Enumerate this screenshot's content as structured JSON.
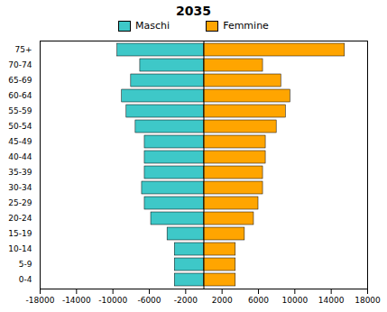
{
  "chart_data": {
    "type": "bar",
    "orientation": "horizontal",
    "title": "2035",
    "categories": [
      "0-4",
      "5-9",
      "10-14",
      "15-19",
      "20-24",
      "25-29",
      "30-34",
      "35-39",
      "40-44",
      "45-49",
      "50-54",
      "55-59",
      "60-64",
      "65-69",
      "70-74",
      "75+"
    ],
    "series": [
      {
        "name": "Maschi",
        "color": "#3EC8C8",
        "values": [
          -3200,
          -3200,
          -3200,
          -4000,
          -5800,
          -6500,
          -6800,
          -6500,
          -6500,
          -6500,
          -7500,
          -8500,
          -9000,
          -8000,
          -7000,
          -9500
        ]
      },
      {
        "name": "Femmine",
        "color": "#FFA500",
        "values": [
          3500,
          3500,
          3500,
          4500,
          5500,
          6000,
          6500,
          6500,
          6800,
          6800,
          8000,
          9000,
          9500,
          8500,
          6500,
          15500
        ]
      }
    ],
    "xlim": [
      -18000,
      18000
    ],
    "xticks": [
      -18000,
      -14000,
      -10000,
      -6000,
      -2000,
      2000,
      6000,
      10000,
      14000,
      18000
    ],
    "legend": "top",
    "grid": false
  }
}
